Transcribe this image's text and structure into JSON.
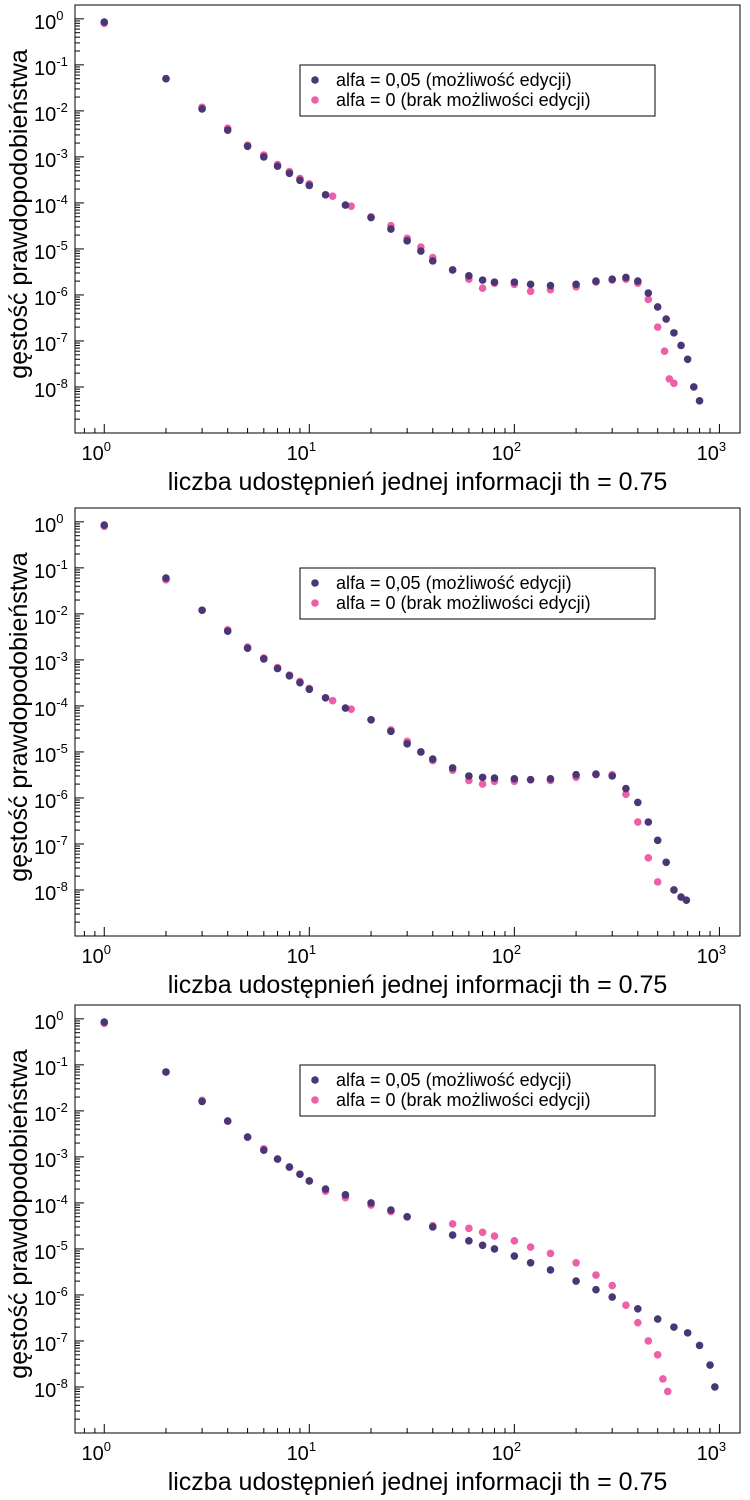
{
  "figure": {
    "colors": {
      "edit": "#4a3575",
      "noedit": "#ee5fa7",
      "axis": "#000000"
    },
    "legend_labels": [
      "alfa = 0,05 (możliwość edycji)",
      "alfa = 0 (brak możliwości edycji)"
    ]
  },
  "chart_data": [
    {
      "type": "scatter",
      "title": "",
      "xlabel": "liczba udostępnień jednej informacji th = 0.75",
      "ylabel": "gęstość prawdopodobieństwa",
      "xscale": "log",
      "yscale": "log",
      "xlim": [
        0.72,
        1260
      ],
      "ylim": [
        1e-09,
        2.0
      ],
      "x_ticks": [
        {
          "base": "10",
          "exp": "0"
        },
        {
          "base": "10",
          "exp": "1"
        },
        {
          "base": "10",
          "exp": "2"
        },
        {
          "base": "10",
          "exp": "3"
        }
      ],
      "y_ticks": [
        {
          "base": "10",
          "exp": "0"
        },
        {
          "base": "10",
          "exp": "-1"
        },
        {
          "base": "10",
          "exp": "-2"
        },
        {
          "base": "10",
          "exp": "-3"
        },
        {
          "base": "10",
          "exp": "-4"
        },
        {
          "base": "10",
          "exp": "-5"
        },
        {
          "base": "10",
          "exp": "-6"
        },
        {
          "base": "10",
          "exp": "-7"
        },
        {
          "base": "10",
          "exp": "-8"
        }
      ],
      "legend_position": "top-right",
      "grid": false,
      "series": [
        {
          "name": "alfa = 0 (brak możliwości edycji)",
          "color": "#ee5fa7",
          "points": [
            [
              1,
              0.8
            ],
            [
              2,
              0.05
            ],
            [
              3,
              0.012
            ],
            [
              4,
              0.0042
            ],
            [
              5,
              0.0018
            ],
            [
              6,
              0.0011
            ],
            [
              7,
              0.00068
            ],
            [
              8,
              0.00048
            ],
            [
              9,
              0.00034
            ],
            [
              10,
              0.00026
            ],
            [
              13,
              0.00014
            ],
            [
              16,
              8.5e-05
            ],
            [
              20,
              5e-05
            ],
            [
              25,
              3.2e-05
            ],
            [
              30,
              1.7e-05
            ],
            [
              35,
              1.1e-05
            ],
            [
              40,
              6.5e-06
            ],
            [
              50,
              3.5e-06
            ],
            [
              60,
              2.2e-06
            ],
            [
              70,
              1.4e-06
            ],
            [
              80,
              1.8e-06
            ],
            [
              100,
              1.7e-06
            ],
            [
              120,
              1.2e-06
            ],
            [
              150,
              1.3e-06
            ],
            [
              200,
              1.5e-06
            ],
            [
              250,
              1.9e-06
            ],
            [
              300,
              2.1e-06
            ],
            [
              350,
              2.2e-06
            ],
            [
              400,
              1.8e-06
            ],
            [
              450,
              8e-07
            ],
            [
              500,
              2e-07
            ],
            [
              540,
              6e-08
            ],
            [
              570,
              1.5e-08
            ],
            [
              600,
              1.2e-08
            ]
          ]
        },
        {
          "name": "alfa = 0,05 (możliwość edycji)",
          "color": "#4a3575",
          "points": [
            [
              1,
              0.85
            ],
            [
              2,
              0.05
            ],
            [
              3,
              0.011
            ],
            [
              4,
              0.0038
            ],
            [
              5,
              0.0017
            ],
            [
              6,
              0.001
            ],
            [
              7,
              0.00063
            ],
            [
              8,
              0.00044
            ],
            [
              9,
              0.00031
            ],
            [
              10,
              0.00024
            ],
            [
              12,
              0.00015
            ],
            [
              15,
              9e-05
            ],
            [
              20,
              4.8e-05
            ],
            [
              25,
              2.7e-05
            ],
            [
              30,
              1.5e-05
            ],
            [
              35,
              9e-06
            ],
            [
              40,
              5.5e-06
            ],
            [
              50,
              3.5e-06
            ],
            [
              60,
              2.6e-06
            ],
            [
              70,
              2.1e-06
            ],
            [
              80,
              1.9e-06
            ],
            [
              100,
              1.9e-06
            ],
            [
              120,
              1.7e-06
            ],
            [
              150,
              1.6e-06
            ],
            [
              200,
              1.7e-06
            ],
            [
              250,
              2e-06
            ],
            [
              300,
              2.2e-06
            ],
            [
              350,
              2.4e-06
            ],
            [
              400,
              2e-06
            ],
            [
              450,
              1.1e-06
            ],
            [
              500,
              5.5e-07
            ],
            [
              550,
              3e-07
            ],
            [
              600,
              1.5e-07
            ],
            [
              650,
              8e-08
            ],
            [
              700,
              4e-08
            ],
            [
              750,
              1e-08
            ],
            [
              800,
              5e-09
            ]
          ]
        }
      ]
    },
    {
      "type": "scatter",
      "title": "",
      "xlabel": "liczba udostępnień jednej informacji th = 0.75",
      "ylabel": "gęstość prawdopodobieństwa",
      "xscale": "log",
      "yscale": "log",
      "xlim": [
        0.72,
        1260
      ],
      "ylim": [
        1e-09,
        2.0
      ],
      "x_ticks": [
        {
          "base": "10",
          "exp": "0"
        },
        {
          "base": "10",
          "exp": "1"
        },
        {
          "base": "10",
          "exp": "2"
        },
        {
          "base": "10",
          "exp": "3"
        }
      ],
      "y_ticks": [
        {
          "base": "10",
          "exp": "0"
        },
        {
          "base": "10",
          "exp": "-1"
        },
        {
          "base": "10",
          "exp": "-2"
        },
        {
          "base": "10",
          "exp": "-3"
        },
        {
          "base": "10",
          "exp": "-4"
        },
        {
          "base": "10",
          "exp": "-5"
        },
        {
          "base": "10",
          "exp": "-6"
        },
        {
          "base": "10",
          "exp": "-7"
        },
        {
          "base": "10",
          "exp": "-8"
        }
      ],
      "legend_position": "top-right",
      "grid": false,
      "series": [
        {
          "name": "alfa = 0 (brak możliwości edycji)",
          "color": "#ee5fa7",
          "points": [
            [
              1,
              0.8
            ],
            [
              2,
              0.055
            ],
            [
              3,
              0.012
            ],
            [
              4,
              0.0045
            ],
            [
              5,
              0.0019
            ],
            [
              6,
              0.0011
            ],
            [
              7,
              0.00068
            ],
            [
              8,
              0.00047
            ],
            [
              9,
              0.00034
            ],
            [
              10,
              0.00024
            ],
            [
              13,
              0.00013
            ],
            [
              16,
              8.5e-05
            ],
            [
              20,
              5e-05
            ],
            [
              25,
              3e-05
            ],
            [
              30,
              1.7e-05
            ],
            [
              35,
              1e-05
            ],
            [
              40,
              6.5e-06
            ],
            [
              50,
              4e-06
            ],
            [
              60,
              2.4e-06
            ],
            [
              70,
              2e-06
            ],
            [
              80,
              2.3e-06
            ],
            [
              100,
              2.3e-06
            ],
            [
              120,
              2.5e-06
            ],
            [
              150,
              2.4e-06
            ],
            [
              200,
              2.8e-06
            ],
            [
              250,
              3.2e-06
            ],
            [
              300,
              3.2e-06
            ],
            [
              350,
              1.2e-06
            ],
            [
              400,
              3e-07
            ],
            [
              450,
              5e-08
            ],
            [
              500,
              1.5e-08
            ]
          ]
        },
        {
          "name": "alfa = 0,05 (możliwość edycji)",
          "color": "#4a3575",
          "points": [
            [
              1,
              0.85
            ],
            [
              2,
              0.06
            ],
            [
              3,
              0.012
            ],
            [
              4,
              0.0042
            ],
            [
              5,
              0.0018
            ],
            [
              6,
              0.00105
            ],
            [
              7,
              0.00065
            ],
            [
              8,
              0.00045
            ],
            [
              9,
              0.00032
            ],
            [
              10,
              0.00023
            ],
            [
              12,
              0.00015
            ],
            [
              15,
              9e-05
            ],
            [
              20,
              5e-05
            ],
            [
              25,
              2.8e-05
            ],
            [
              30,
              1.5e-05
            ],
            [
              35,
              1e-05
            ],
            [
              40,
              7e-06
            ],
            [
              50,
              4.5e-06
            ],
            [
              60,
              3e-06
            ],
            [
              70,
              2.8e-06
            ],
            [
              80,
              2.7e-06
            ],
            [
              100,
              2.6e-06
            ],
            [
              120,
              2.5e-06
            ],
            [
              150,
              2.6e-06
            ],
            [
              200,
              3.2e-06
            ],
            [
              250,
              3.3e-06
            ],
            [
              300,
              3e-06
            ],
            [
              350,
              1.6e-06
            ],
            [
              400,
              8e-07
            ],
            [
              450,
              3e-07
            ],
            [
              500,
              1.2e-07
            ],
            [
              550,
              4e-08
            ],
            [
              600,
              1e-08
            ],
            [
              650,
              7e-09
            ],
            [
              690,
              6e-09
            ]
          ]
        }
      ]
    },
    {
      "type": "scatter",
      "title": "",
      "xlabel": "liczba udostępnień jednej informacji th = 0.75",
      "ylabel": "gęstość prawdopodobieństwa",
      "xscale": "log",
      "yscale": "log",
      "xlim": [
        0.72,
        1260
      ],
      "ylim": [
        1e-09,
        2.0
      ],
      "x_ticks": [
        {
          "base": "10",
          "exp": "0"
        },
        {
          "base": "10",
          "exp": "1"
        },
        {
          "base": "10",
          "exp": "2"
        },
        {
          "base": "10",
          "exp": "3"
        }
      ],
      "y_ticks": [
        {
          "base": "10",
          "exp": "0"
        },
        {
          "base": "10",
          "exp": "-1"
        },
        {
          "base": "10",
          "exp": "-2"
        },
        {
          "base": "10",
          "exp": "-3"
        },
        {
          "base": "10",
          "exp": "-4"
        },
        {
          "base": "10",
          "exp": "-5"
        },
        {
          "base": "10",
          "exp": "-6"
        },
        {
          "base": "10",
          "exp": "-7"
        },
        {
          "base": "10",
          "exp": "-8"
        }
      ],
      "legend_position": "top-right",
      "grid": false,
      "series": [
        {
          "name": "alfa = 0 (brak możliwości edycji)",
          "color": "#ee5fa7",
          "points": [
            [
              1,
              0.8
            ],
            [
              2,
              0.07
            ],
            [
              3,
              0.017
            ],
            [
              4,
              0.006
            ],
            [
              5,
              0.0027
            ],
            [
              6,
              0.0015
            ],
            [
              7,
              0.0009
            ],
            [
              8,
              0.0006
            ],
            [
              9,
              0.00042
            ],
            [
              10,
              0.0003
            ],
            [
              12,
              0.00018
            ],
            [
              15,
              0.00013
            ],
            [
              20,
              9e-05
            ],
            [
              25,
              6.5e-05
            ],
            [
              30,
              5e-05
            ],
            [
              40,
              3.2e-05
            ],
            [
              50,
              3.5e-05
            ],
            [
              60,
              2.8e-05
            ],
            [
              70,
              2.3e-05
            ],
            [
              80,
              1.9e-05
            ],
            [
              100,
              1.5e-05
            ],
            [
              120,
              1.1e-05
            ],
            [
              150,
              8e-06
            ],
            [
              200,
              5e-06
            ],
            [
              250,
              2.7e-06
            ],
            [
              300,
              1.6e-06
            ],
            [
              350,
              6e-07
            ],
            [
              400,
              2.5e-07
            ],
            [
              450,
              1e-07
            ],
            [
              500,
              5e-08
            ],
            [
              530,
              1.5e-08
            ],
            [
              560,
              8e-09
            ]
          ]
        },
        {
          "name": "alfa = 0,05 (możliwość edycji)",
          "color": "#4a3575",
          "points": [
            [
              1,
              0.85
            ],
            [
              2,
              0.07
            ],
            [
              3,
              0.016
            ],
            [
              4,
              0.006
            ],
            [
              5,
              0.0027
            ],
            [
              6,
              0.0014
            ],
            [
              7,
              0.0009
            ],
            [
              8,
              0.0006
            ],
            [
              9,
              0.00042
            ],
            [
              10,
              0.0003
            ],
            [
              12,
              0.0002
            ],
            [
              15,
              0.00015
            ],
            [
              20,
              0.0001
            ],
            [
              25,
              7e-05
            ],
            [
              30,
              5e-05
            ],
            [
              40,
              3e-05
            ],
            [
              50,
              2e-05
            ],
            [
              60,
              1.5e-05
            ],
            [
              70,
              1.2e-05
            ],
            [
              80,
              1e-05
            ],
            [
              100,
              7e-06
            ],
            [
              120,
              5e-06
            ],
            [
              150,
              3.5e-06
            ],
            [
              200,
              2e-06
            ],
            [
              250,
              1.3e-06
            ],
            [
              300,
              9e-07
            ],
            [
              400,
              5e-07
            ],
            [
              500,
              3e-07
            ],
            [
              600,
              2e-07
            ],
            [
              700,
              1.5e-07
            ],
            [
              800,
              8e-08
            ],
            [
              900,
              3e-08
            ],
            [
              950,
              1e-08
            ]
          ]
        }
      ]
    }
  ]
}
